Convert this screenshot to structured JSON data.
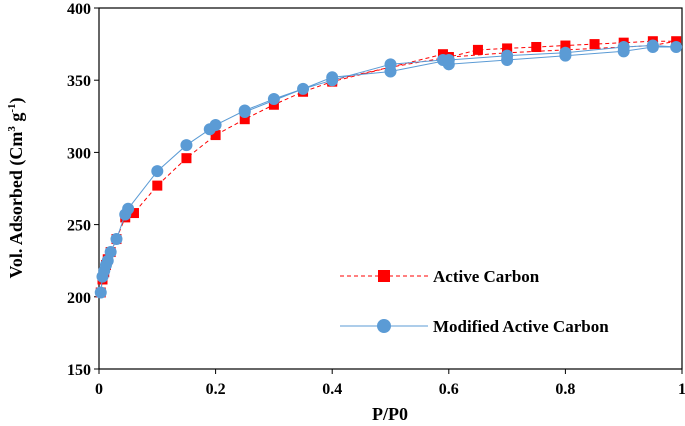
{
  "chart_data": {
    "type": "scatter",
    "title": "",
    "xlabel": "P/P0",
    "ylabel_main": "Vol. Adsorbed (Cm",
    "ylabel_sup1": "3",
    "ylabel_mid": " g",
    "ylabel_sup2": "-1",
    "ylabel_end": ")",
    "xlim": [
      0,
      1
    ],
    "ylim": [
      150,
      400
    ],
    "x_ticks": [
      0,
      0.2,
      0.4,
      0.6,
      0.8,
      1
    ],
    "x_tick_labels": [
      "0",
      "0.2",
      "0.4",
      "0.6",
      "0.8",
      "1"
    ],
    "y_ticks": [
      150,
      200,
      250,
      300,
      350,
      400
    ],
    "y_tick_labels": [
      "150",
      "200",
      "250",
      "300",
      "350",
      "400"
    ],
    "legend_position": "bottom-right",
    "series": [
      {
        "name": "Active Carbon",
        "color": "#ff0000",
        "marker": "square",
        "line": "dashed",
        "x": [
          0.003,
          0.006,
          0.009,
          0.012,
          0.015,
          0.02,
          0.03,
          0.045,
          0.06,
          0.1,
          0.15,
          0.2,
          0.25,
          0.3,
          0.35,
          0.4,
          0.5,
          0.59,
          0.6,
          0.65,
          0.7,
          0.75,
          0.8,
          0.85,
          0.9,
          0.95,
          0.99,
          0.95,
          0.9,
          0.8,
          0.7,
          0.6,
          0.5,
          0.4
        ],
        "y": [
          203,
          212,
          217,
          222,
          226,
          231,
          240,
          255,
          258,
          277,
          296,
          312,
          323,
          333,
          342,
          349,
          359,
          368,
          366,
          371,
          372,
          373,
          374,
          375,
          376,
          377,
          377,
          374,
          373,
          371,
          369,
          366,
          359,
          350
        ]
      },
      {
        "name": "Modified Active Carbon",
        "color": "#5b9bd5",
        "marker": "circle",
        "line": "solid",
        "x": [
          0.003,
          0.006,
          0.009,
          0.012,
          0.015,
          0.02,
          0.03,
          0.045,
          0.05,
          0.1,
          0.15,
          0.19,
          0.2,
          0.25,
          0.3,
          0.35,
          0.4,
          0.5,
          0.59,
          0.6,
          0.7,
          0.8,
          0.9,
          0.95,
          0.99,
          0.95,
          0.9,
          0.8,
          0.7,
          0.6,
          0.5,
          0.4,
          0.25
        ],
        "y": [
          203,
          214,
          218,
          222,
          225,
          231,
          240,
          257,
          261,
          287,
          305,
          316,
          319,
          329,
          337,
          344,
          350,
          361,
          364,
          361,
          364,
          367,
          370,
          373,
          373,
          374,
          373,
          369,
          367,
          364,
          356,
          352,
          328
        ]
      }
    ]
  }
}
